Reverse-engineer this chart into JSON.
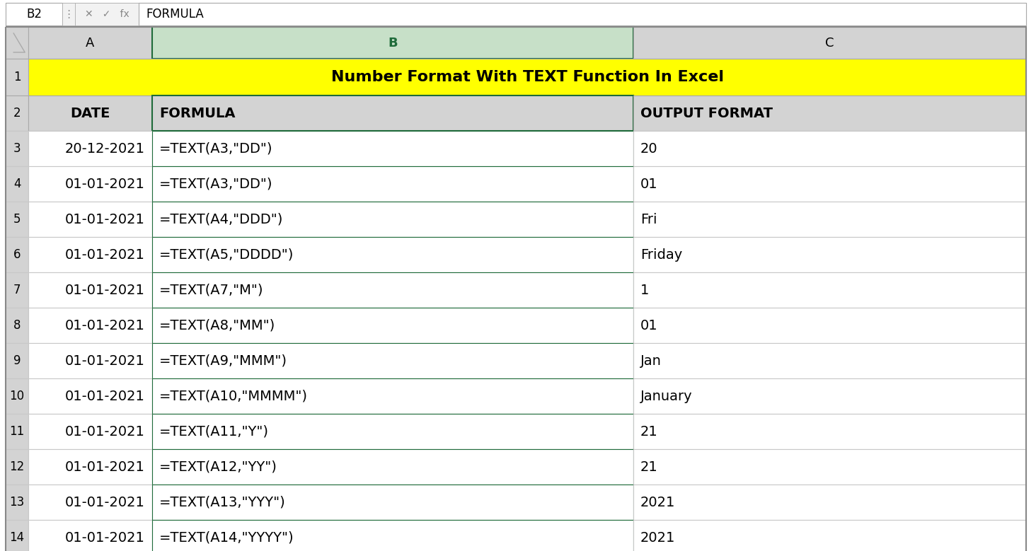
{
  "title": "Number Format With TEXT Function In Excel",
  "title_bg": "#FFFF00",
  "title_color": "#000000",
  "header_bg": "#D3D3D3",
  "col_b_header_color": "#1F6B3A",
  "formula_bar_label": "B2",
  "formula_bar_value": "FORMULA",
  "col_letters": [
    "A",
    "B",
    "C"
  ],
  "col_headers": [
    "DATE",
    "FORMULA",
    "OUTPUT FORMAT"
  ],
  "rows": [
    [
      "20-12-2021",
      "=TEXT(A3,\"DD\")",
      "20"
    ],
    [
      "01-01-2021",
      "=TEXT(A3,\"DD\")",
      "01"
    ],
    [
      "01-01-2021",
      "=TEXT(A4,\"DDD\")",
      "Fri"
    ],
    [
      "01-01-2021",
      "=TEXT(A5,\"DDDD\")",
      "Friday"
    ],
    [
      "01-01-2021",
      "=TEXT(A7,\"M\")",
      "1"
    ],
    [
      "01-01-2021",
      "=TEXT(A8,\"MM\")",
      "01"
    ],
    [
      "01-01-2021",
      "=TEXT(A9,\"MMM\")",
      "Jan"
    ],
    [
      "01-01-2021",
      "=TEXT(A10,\"MMMM\")",
      "January"
    ],
    [
      "01-01-2021",
      "=TEXT(A11,\"Y\")",
      "21"
    ],
    [
      "01-01-2021",
      "=TEXT(A12,\"YY\")",
      "21"
    ],
    [
      "01-01-2021",
      "=TEXT(A13,\"YYY\")",
      "2021"
    ],
    [
      "01-01-2021",
      "=TEXT(A14,\"YYYY\")",
      "2021"
    ]
  ],
  "row_numbers": [
    3,
    4,
    5,
    6,
    7,
    8,
    9,
    10,
    11,
    12,
    13,
    14
  ],
  "bg_color": "#FFFFFF",
  "border_light": "#C0C0C0",
  "border_dark": "#888888",
  "green_border": "#1F6B3A",
  "font_size_data": 14,
  "font_size_header": 14,
  "font_size_title": 16,
  "font_size_fb": 12,
  "formula_bar_bg": "#F2F2F2",
  "col_b_header_bg": "#C7E0C8"
}
